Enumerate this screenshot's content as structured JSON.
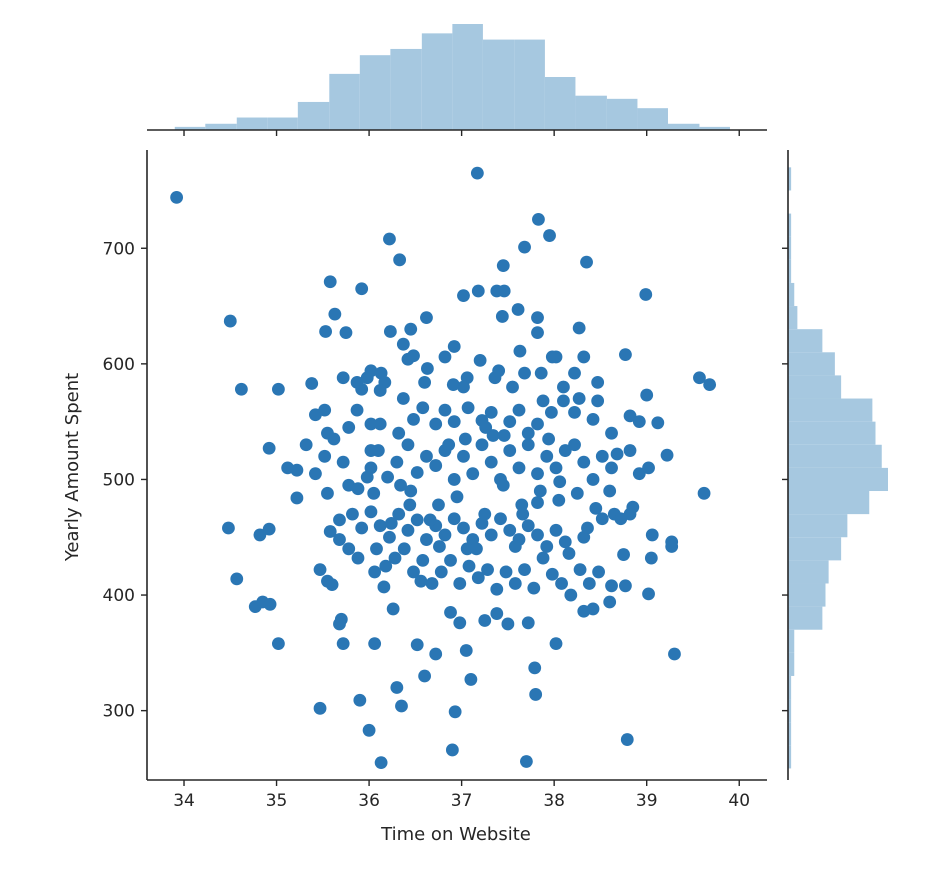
{
  "chart_data": {
    "type": "scatter",
    "subtype": "jointplot",
    "xlabel": "Time on Website",
    "ylabel": "Yearly Amount Spent",
    "xlim": [
      33.6,
      40.3
    ],
    "ylim": [
      240,
      785
    ],
    "xticks": [
      34,
      35,
      36,
      37,
      38,
      39,
      40
    ],
    "yticks": [
      300,
      400,
      500,
      600,
      700
    ],
    "grid": false,
    "colors": {
      "points": "#2a76b4",
      "histogram": "#a6c8e0"
    },
    "marginal_x_histogram": {
      "bin_edges": [
        33.9,
        34.23,
        34.57,
        34.9,
        35.23,
        35.57,
        35.9,
        36.23,
        36.57,
        36.9,
        37.23,
        37.57,
        37.9,
        38.23,
        38.57,
        38.9,
        39.23,
        39.57,
        39.9
      ],
      "counts": [
        1,
        2,
        4,
        4,
        9,
        18,
        24,
        26,
        31,
        34,
        29,
        29,
        17,
        11,
        10,
        7,
        2,
        1
      ]
    },
    "marginal_y_histogram": {
      "bin_edges": [
        250,
        270,
        290,
        310,
        330,
        350,
        370,
        390,
        410,
        430,
        450,
        470,
        490,
        510,
        530,
        550,
        570,
        590,
        610,
        630,
        650,
        670,
        690,
        710,
        730,
        750,
        770
      ],
      "counts": [
        1,
        1,
        1,
        1,
        2,
        2,
        11,
        12,
        13,
        17,
        19,
        26,
        32,
        30,
        28,
        27,
        17,
        15,
        11,
        3,
        2,
        1,
        1,
        1,
        0,
        1
      ]
    },
    "points": [
      [
        33.92,
        744
      ],
      [
        37.17,
        765
      ],
      [
        37.83,
        725
      ],
      [
        37.95,
        711
      ],
      [
        37.68,
        701
      ],
      [
        36.22,
        708
      ],
      [
        36.33,
        690
      ],
      [
        37.45,
        685
      ],
      [
        38.35,
        688
      ],
      [
        35.58,
        671
      ],
      [
        35.92,
        665
      ],
      [
        37.02,
        659
      ],
      [
        37.18,
        663
      ],
      [
        37.38,
        663
      ],
      [
        37.46,
        663
      ],
      [
        38.99,
        660
      ],
      [
        37.44,
        641
      ],
      [
        37.61,
        647
      ],
      [
        34.5,
        637
      ],
      [
        35.63,
        643
      ],
      [
        35.53,
        628
      ],
      [
        35.75,
        627
      ],
      [
        36.23,
        628
      ],
      [
        36.45,
        630
      ],
      [
        36.62,
        640
      ],
      [
        37.82,
        640
      ],
      [
        38.27,
        631
      ],
      [
        37.82,
        627
      ],
      [
        35.92,
        578
      ],
      [
        35.98,
        588
      ],
      [
        36.02,
        594
      ],
      [
        36.13,
        592
      ],
      [
        36.17,
        584
      ],
      [
        36.48,
        607
      ],
      [
        36.37,
        617
      ],
      [
        36.42,
        604
      ],
      [
        36.63,
        596
      ],
      [
        36.82,
        606
      ],
      [
        36.92,
        615
      ],
      [
        37.2,
        603
      ],
      [
        37.06,
        588
      ],
      [
        37.36,
        588
      ],
      [
        37.63,
        611
      ],
      [
        38.02,
        606
      ],
      [
        38.32,
        606
      ],
      [
        38.47,
        584
      ],
      [
        38.77,
        608
      ],
      [
        37.02,
        580
      ],
      [
        35.38,
        583
      ],
      [
        35.52,
        560
      ],
      [
        35.72,
        588
      ],
      [
        35.87,
        584
      ],
      [
        36.12,
        577
      ],
      [
        36.37,
        570
      ],
      [
        36.6,
        584
      ],
      [
        36.91,
        582
      ],
      [
        37.4,
        594
      ],
      [
        37.55,
        580
      ],
      [
        37.68,
        592
      ],
      [
        37.86,
        592
      ],
      [
        37.98,
        606
      ],
      [
        38.1,
        580
      ],
      [
        38.22,
        592
      ],
      [
        39.0,
        573
      ],
      [
        39.57,
        588
      ],
      [
        39.68,
        582
      ],
      [
        34.62,
        578
      ],
      [
        35.02,
        578
      ],
      [
        35.42,
        556
      ],
      [
        35.55,
        540
      ],
      [
        35.78,
        545
      ],
      [
        35.87,
        560
      ],
      [
        36.02,
        548
      ],
      [
        36.12,
        548
      ],
      [
        36.32,
        540
      ],
      [
        36.48,
        552
      ],
      [
        36.58,
        562
      ],
      [
        36.72,
        548
      ],
      [
        36.82,
        560
      ],
      [
        36.92,
        550
      ],
      [
        37.07,
        562
      ],
      [
        37.22,
        551
      ],
      [
        37.32,
        558
      ],
      [
        37.52,
        550
      ],
      [
        37.62,
        560
      ],
      [
        37.72,
        540
      ],
      [
        37.82,
        548
      ],
      [
        37.97,
        558
      ],
      [
        38.22,
        558
      ],
      [
        38.42,
        552
      ],
      [
        38.62,
        540
      ],
      [
        38.82,
        555
      ],
      [
        38.92,
        550
      ],
      [
        39.12,
        549
      ],
      [
        38.47,
        568
      ],
      [
        38.27,
        570
      ],
      [
        38.1,
        568
      ],
      [
        37.88,
        568
      ],
      [
        35.12,
        510
      ],
      [
        35.22,
        508
      ],
      [
        35.32,
        530
      ],
      [
        35.42,
        505
      ],
      [
        35.52,
        520
      ],
      [
        35.62,
        535
      ],
      [
        35.72,
        515
      ],
      [
        35.78,
        495
      ],
      [
        35.88,
        492
      ],
      [
        36.02,
        510
      ],
      [
        36.1,
        525
      ],
      [
        36.2,
        502
      ],
      [
        36.3,
        515
      ],
      [
        36.42,
        530
      ],
      [
        36.52,
        506
      ],
      [
        36.62,
        520
      ],
      [
        36.72,
        512
      ],
      [
        36.82,
        525
      ],
      [
        36.92,
        500
      ],
      [
        37.02,
        520
      ],
      [
        37.12,
        505
      ],
      [
        37.22,
        530
      ],
      [
        37.32,
        515
      ],
      [
        37.42,
        500
      ],
      [
        37.52,
        525
      ],
      [
        37.62,
        510
      ],
      [
        37.72,
        530
      ],
      [
        37.82,
        505
      ],
      [
        37.92,
        520
      ],
      [
        38.02,
        510
      ],
      [
        38.12,
        525
      ],
      [
        38.22,
        530
      ],
      [
        38.32,
        515
      ],
      [
        38.42,
        500
      ],
      [
        38.52,
        520
      ],
      [
        38.62,
        510
      ],
      [
        38.82,
        525
      ],
      [
        38.92,
        505
      ],
      [
        39.02,
        510
      ],
      [
        39.22,
        521
      ],
      [
        34.92,
        527
      ],
      [
        35.22,
        484
      ],
      [
        35.55,
        488
      ],
      [
        36.05,
        488
      ],
      [
        36.45,
        490
      ],
      [
        36.75,
        478
      ],
      [
        36.95,
        485
      ],
      [
        37.25,
        470
      ],
      [
        37.45,
        495
      ],
      [
        37.65,
        478
      ],
      [
        37.85,
        490
      ],
      [
        38.05,
        482
      ],
      [
        38.25,
        488
      ],
      [
        38.45,
        475
      ],
      [
        38.65,
        470
      ],
      [
        38.85,
        476
      ],
      [
        39.62,
        488
      ],
      [
        35.68,
        465
      ],
      [
        35.82,
        470
      ],
      [
        35.92,
        458
      ],
      [
        36.02,
        472
      ],
      [
        36.12,
        460
      ],
      [
        36.22,
        450
      ],
      [
        36.32,
        470
      ],
      [
        36.42,
        456
      ],
      [
        36.52,
        465
      ],
      [
        36.62,
        448
      ],
      [
        36.72,
        460
      ],
      [
        36.82,
        452
      ],
      [
        36.92,
        466
      ],
      [
        37.02,
        458
      ],
      [
        37.12,
        448
      ],
      [
        37.22,
        462
      ],
      [
        37.32,
        452
      ],
      [
        37.42,
        466
      ],
      [
        37.52,
        456
      ],
      [
        37.62,
        448
      ],
      [
        37.72,
        460
      ],
      [
        37.82,
        452
      ],
      [
        37.92,
        442
      ],
      [
        38.02,
        456
      ],
      [
        38.12,
        446
      ],
      [
        38.32,
        450
      ],
      [
        38.52,
        466
      ],
      [
        38.72,
        466
      ],
      [
        38.82,
        470
      ],
      [
        39.06,
        452
      ],
      [
        39.27,
        446
      ],
      [
        34.48,
        458
      ],
      [
        34.82,
        452
      ],
      [
        34.92,
        457
      ],
      [
        35.58,
        455
      ],
      [
        35.68,
        448
      ],
      [
        35.78,
        440
      ],
      [
        35.88,
        432
      ],
      [
        36.08,
        440
      ],
      [
        36.18,
        425
      ],
      [
        36.28,
        432
      ],
      [
        36.38,
        440
      ],
      [
        36.48,
        420
      ],
      [
        36.58,
        430
      ],
      [
        36.68,
        410
      ],
      [
        36.78,
        420
      ],
      [
        36.88,
        430
      ],
      [
        36.98,
        410
      ],
      [
        37.08,
        425
      ],
      [
        37.18,
        415
      ],
      [
        37.28,
        422
      ],
      [
        37.38,
        405
      ],
      [
        37.48,
        420
      ],
      [
        37.58,
        410
      ],
      [
        37.68,
        422
      ],
      [
        37.78,
        406
      ],
      [
        37.88,
        432
      ],
      [
        37.98,
        418
      ],
      [
        38.08,
        410
      ],
      [
        38.18,
        400
      ],
      [
        38.28,
        422
      ],
      [
        38.38,
        410
      ],
      [
        38.48,
        420
      ],
      [
        38.62,
        408
      ],
      [
        38.75,
        435
      ],
      [
        39.05,
        432
      ],
      [
        39.27,
        442
      ],
      [
        35.47,
        422
      ],
      [
        35.55,
        412
      ],
      [
        35.6,
        409
      ],
      [
        36.06,
        420
      ],
      [
        36.16,
        407
      ],
      [
        35.7,
        379
      ],
      [
        35.68,
        375
      ],
      [
        35.72,
        358
      ],
      [
        36.06,
        358
      ],
      [
        36.26,
        388
      ],
      [
        36.52,
        357
      ],
      [
        36.6,
        330
      ],
      [
        36.72,
        349
      ],
      [
        36.88,
        385
      ],
      [
        36.98,
        376
      ],
      [
        37.05,
        352
      ],
      [
        37.1,
        327
      ],
      [
        37.25,
        378
      ],
      [
        37.38,
        384
      ],
      [
        37.5,
        375
      ],
      [
        37.72,
        376
      ],
      [
        37.79,
        337
      ],
      [
        37.8,
        314
      ],
      [
        38.02,
        358
      ],
      [
        38.32,
        386
      ],
      [
        38.42,
        388
      ],
      [
        38.6,
        394
      ],
      [
        38.77,
        408
      ],
      [
        39.02,
        401
      ],
      [
        39.3,
        349
      ],
      [
        34.57,
        414
      ],
      [
        34.77,
        390
      ],
      [
        34.85,
        394
      ],
      [
        34.93,
        392
      ],
      [
        35.02,
        358
      ],
      [
        35.47,
        302
      ],
      [
        35.9,
        309
      ],
      [
        36.0,
        283
      ],
      [
        36.13,
        255
      ],
      [
        36.3,
        320
      ],
      [
        36.35,
        304
      ],
      [
        36.9,
        266
      ],
      [
        36.93,
        299
      ],
      [
        37.7,
        256
      ],
      [
        38.79,
        275
      ],
      [
        36.56,
        412
      ],
      [
        36.76,
        442
      ],
      [
        37.16,
        440
      ],
      [
        37.58,
        442
      ],
      [
        38.16,
        436
      ],
      [
        36.44,
        478
      ],
      [
        37.04,
        535
      ],
      [
        37.34,
        538
      ],
      [
        37.94,
        535
      ],
      [
        38.68,
        522
      ],
      [
        36.86,
        530
      ],
      [
        37.26,
        545
      ],
      [
        37.66,
        470
      ],
      [
        37.06,
        440
      ],
      [
        36.66,
        465
      ],
      [
        38.06,
        498
      ],
      [
        35.98,
        502
      ],
      [
        38.6,
        490
      ],
      [
        36.34,
        495
      ],
      [
        37.46,
        538
      ],
      [
        36.24,
        462
      ],
      [
        38.36,
        458
      ],
      [
        36.02,
        525
      ],
      [
        37.82,
        480
      ]
    ]
  }
}
